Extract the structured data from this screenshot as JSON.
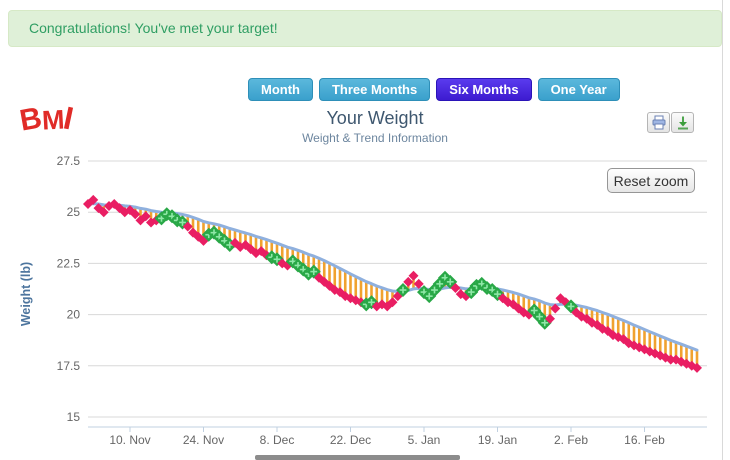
{
  "banner": {
    "text": "Congratulations! You've met your target!"
  },
  "logo": {
    "text": "BMI"
  },
  "range_buttons": [
    {
      "label": "Month",
      "selected": false
    },
    {
      "label": "Three Months",
      "selected": false
    },
    {
      "label": "Six Months",
      "selected": true
    },
    {
      "label": "One Year",
      "selected": false
    }
  ],
  "toolbar": {
    "print": "print-chart",
    "download": "download-chart"
  },
  "controls": {
    "reset_zoom_label": "Reset zoom"
  },
  "colors": {
    "banner_bg": "#dff0d8",
    "banner_text": "#2f9e63",
    "logo_red": "#e02b27",
    "button_blue": "#3aa0cc",
    "button_selected_purple": "#3d1bd0",
    "title": "#3e576f",
    "subtitle": "#6d869f",
    "marker_pink": "#e91e63",
    "marker_green": "#29a847",
    "marker_green_cross": "#90e8a8",
    "trend_blue": "#8fb0de",
    "hatch_orange": "#f0a22f",
    "grid": "#d8d8d8",
    "axis": "#c0d0e0",
    "axis_label": "#666666",
    "axis_title": "#4d759e"
  },
  "chart_data": {
    "type": "scatter",
    "title": "Your Weight",
    "subtitle": "Weight & Trend Information",
    "ylabel": "Weight (lb)",
    "xlabel": "",
    "ylim": [
      15,
      27.5
    ],
    "y_ticks": [
      27.5,
      25,
      22.5,
      20,
      17.5,
      15
    ],
    "x_tick_labels": [
      "10. Nov",
      "24. Nov",
      "8. Dec",
      "22. Dec",
      "5. Jan",
      "19. Jan",
      "2. Feb",
      "16. Feb"
    ],
    "x_tick_days": [
      8,
      22,
      36,
      50,
      64,
      78,
      92,
      106
    ],
    "grid": true,
    "legend": "none",
    "series_description": "Daily weight measurements (diamonds: pink = above-trend/normal, green = good days), exponential moving-average trend line (blue), orange hatch lines showing deviation from trend",
    "trend_smoothing": 0.1,
    "weights": [
      25.4,
      25.6,
      25.2,
      25.0,
      25.3,
      25.4,
      25.2,
      25.0,
      25.1,
      24.9,
      24.6,
      24.8,
      24.5,
      24.6,
      24.7,
      24.9,
      24.8,
      24.6,
      24.5,
      24.3,
      24.0,
      23.8,
      23.6,
      23.9,
      24.0,
      23.8,
      23.6,
      23.4,
      23.5,
      23.3,
      23.4,
      23.2,
      23.0,
      23.1,
      22.9,
      22.8,
      22.7,
      22.5,
      22.4,
      22.6,
      22.4,
      22.2,
      22.0,
      22.1,
      21.8,
      21.6,
      21.4,
      21.2,
      21.1,
      20.9,
      20.8,
      20.7,
      20.6,
      20.5,
      20.6,
      20.4,
      20.5,
      20.4,
      20.6,
      20.9,
      21.2,
      21.6,
      21.9,
      21.5,
      21.1,
      20.9,
      21.2,
      21.5,
      21.8,
      21.6,
      21.3,
      21.0,
      20.9,
      21.1,
      21.4,
      21.5,
      21.3,
      21.2,
      21.0,
      20.8,
      20.6,
      20.5,
      20.3,
      20.1,
      20.0,
      20.2,
      19.9,
      19.6,
      19.8,
      20.3,
      20.8,
      20.6,
      20.4,
      20.1,
      19.9,
      19.8,
      19.6,
      19.5,
      19.3,
      19.2,
      19.0,
      18.9,
      18.8,
      18.6,
      18.5,
      18.4,
      18.3,
      18.2,
      18.1,
      18.0,
      17.9,
      17.8,
      17.8,
      17.7,
      17.6,
      17.5,
      17.4
    ],
    "green_days": [
      14,
      15,
      16,
      17,
      18,
      23,
      24,
      25,
      26,
      27,
      35,
      36,
      39,
      40,
      41,
      42,
      43,
      53,
      54,
      60,
      64,
      65,
      66,
      67,
      68,
      69,
      73,
      74,
      75,
      76,
      77,
      78,
      85,
      86,
      87,
      92
    ]
  }
}
